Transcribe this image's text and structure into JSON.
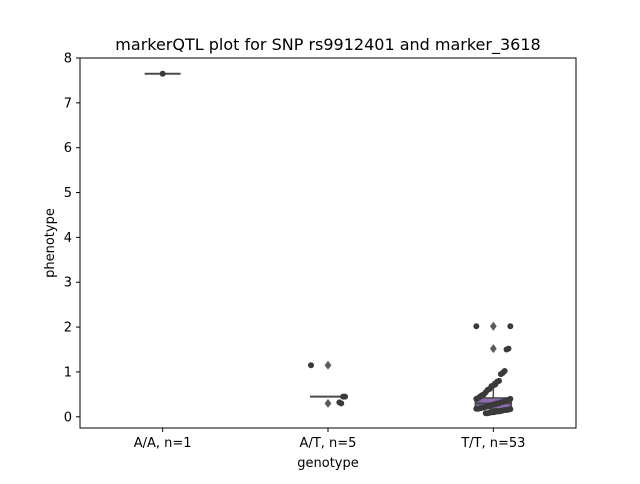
{
  "chart_data": {
    "type": "box",
    "title": "markerQTL plot for SNP rs9912401 and marker_3618",
    "xlabel": "genotype",
    "ylabel": "phenotype",
    "categories": [
      "A/A, n=1",
      "A/T, n=5",
      "T/T, n=53"
    ],
    "ylim": [
      -0.25,
      8.0
    ],
    "yticks": [
      0,
      1,
      2,
      3,
      4,
      5,
      6,
      7,
      8
    ],
    "grid": false,
    "legend": "none",
    "box_color": "#8c6bb1",
    "point_color": "#3a3a3a",
    "boxes": [
      {
        "category": "A/A, n=1",
        "q1": 7.65,
        "median": 7.65,
        "q3": 7.65,
        "whisker_low": 7.65,
        "whisker_high": 7.65,
        "outliers": []
      },
      {
        "category": "A/T, n=5",
        "q1": 0.45,
        "median": 0.45,
        "q3": 0.45,
        "whisker_low": 0.45,
        "whisker_high": 0.45,
        "outliers": [
          1.15,
          0.3
        ]
      },
      {
        "category": "T/T, n=53",
        "q1": 0.18,
        "median": 0.3,
        "q3": 0.42,
        "whisker_low": 0.08,
        "whisker_high": 0.8,
        "outliers": [
          1.52,
          2.02
        ]
      }
    ],
    "points": [
      {
        "category": "A/A, n=1",
        "values": [
          7.65
        ]
      },
      {
        "category": "A/T, n=5",
        "values": [
          1.15,
          0.45,
          0.45,
          0.3,
          0.32
        ]
      },
      {
        "category": "T/T, n=53",
        "values": [
          2.02,
          2.02,
          1.52,
          1.5,
          1.02,
          0.98,
          0.95,
          0.8,
          0.78,
          0.72,
          0.7,
          0.68,
          0.62,
          0.6,
          0.55,
          0.5,
          0.48,
          0.45,
          0.42,
          0.4,
          0.4,
          0.38,
          0.36,
          0.35,
          0.33,
          0.32,
          0.3,
          0.3,
          0.28,
          0.27,
          0.26,
          0.25,
          0.24,
          0.22,
          0.21,
          0.2,
          0.19,
          0.18,
          0.18,
          0.17,
          0.16,
          0.15,
          0.15,
          0.14,
          0.13,
          0.12,
          0.12,
          0.11,
          0.1,
          0.1,
          0.09,
          0.08,
          0.08
        ]
      }
    ]
  }
}
